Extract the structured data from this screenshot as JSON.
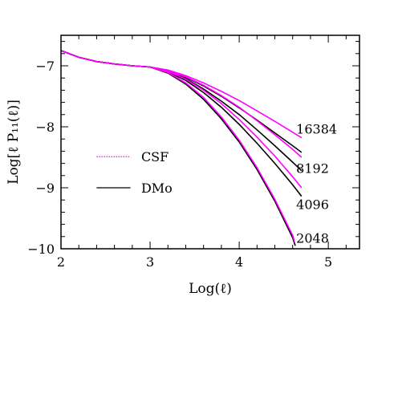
{
  "chart_data": {
    "type": "line",
    "title": "",
    "xlabel": "Log(ℓ)",
    "ylabel": "Log[ℓ P₁₁(ℓ)]",
    "xlim": [
      2,
      5.35
    ],
    "ylim": [
      -10,
      -6.5
    ],
    "xticks": [
      2,
      3,
      4,
      5
    ],
    "yticks": [
      -7,
      -8,
      -9,
      -10
    ],
    "legend": {
      "placement": "left-center",
      "entries": [
        {
          "name": "CSF",
          "color": "#ff00ff",
          "style": "dotted"
        },
        {
          "name": "DMo",
          "color": "#000000",
          "style": "solid"
        }
      ]
    },
    "annotations": [
      "16384",
      "8192",
      "4096",
      "2048"
    ],
    "series": [
      {
        "group": "DMo",
        "label": "16384",
        "color": "#000000",
        "x": [
          2.0,
          2.2,
          2.4,
          2.6,
          2.8,
          3.0,
          3.2,
          3.4,
          3.6,
          3.8,
          4.0,
          4.2,
          4.4,
          4.6,
          4.7
        ],
        "y": [
          -6.75,
          -6.86,
          -6.93,
          -6.97,
          -7.0,
          -7.02,
          -7.08,
          -7.19,
          -7.33,
          -7.5,
          -7.69,
          -7.89,
          -8.1,
          -8.31,
          -8.42
        ]
      },
      {
        "group": "CSF",
        "label": "16384",
        "color": "#ff00ff",
        "x": [
          2.0,
          2.2,
          2.4,
          2.6,
          2.8,
          3.0,
          3.2,
          3.4,
          3.6,
          3.8,
          4.0,
          4.2,
          4.4,
          4.6,
          4.7
        ],
        "y": [
          -6.75,
          -6.86,
          -6.93,
          -6.97,
          -7.0,
          -7.02,
          -7.07,
          -7.16,
          -7.28,
          -7.42,
          -7.57,
          -7.74,
          -7.91,
          -8.09,
          -8.18
        ]
      },
      {
        "group": "DMo",
        "label": "8192",
        "color": "#000000",
        "x": [
          2.0,
          2.2,
          2.4,
          2.6,
          2.8,
          3.0,
          3.2,
          3.4,
          3.6,
          3.8,
          4.0,
          4.2,
          4.4,
          4.6,
          4.7
        ],
        "y": [
          -6.75,
          -6.86,
          -6.93,
          -6.97,
          -7.0,
          -7.02,
          -7.09,
          -7.21,
          -7.38,
          -7.58,
          -7.8,
          -8.05,
          -8.31,
          -8.58,
          -8.72
        ]
      },
      {
        "group": "CSF",
        "label": "8192",
        "color": "#ff00ff",
        "x": [
          2.0,
          2.2,
          2.4,
          2.6,
          2.8,
          3.0,
          3.2,
          3.4,
          3.6,
          3.8,
          4.0,
          4.2,
          4.4,
          4.6,
          4.7
        ],
        "y": [
          -6.75,
          -6.86,
          -6.93,
          -6.97,
          -7.0,
          -7.02,
          -7.08,
          -7.18,
          -7.32,
          -7.49,
          -7.68,
          -7.9,
          -8.13,
          -8.37,
          -8.5
        ]
      },
      {
        "group": "DMo",
        "label": "4096",
        "color": "#000000",
        "x": [
          2.0,
          2.2,
          2.4,
          2.6,
          2.8,
          3.0,
          3.2,
          3.4,
          3.6,
          3.8,
          4.0,
          4.2,
          4.4,
          4.6,
          4.7
        ],
        "y": [
          -6.75,
          -6.86,
          -6.93,
          -6.97,
          -7.0,
          -7.02,
          -7.1,
          -7.24,
          -7.44,
          -7.68,
          -7.96,
          -8.27,
          -8.6,
          -8.95,
          -9.14
        ]
      },
      {
        "group": "CSF",
        "label": "4096",
        "color": "#ff00ff",
        "x": [
          2.0,
          2.2,
          2.4,
          2.6,
          2.8,
          3.0,
          3.2,
          3.4,
          3.6,
          3.8,
          4.0,
          4.2,
          4.4,
          4.6,
          4.7
        ],
        "y": [
          -6.75,
          -6.86,
          -6.93,
          -6.97,
          -7.0,
          -7.02,
          -7.09,
          -7.22,
          -7.4,
          -7.62,
          -7.88,
          -8.17,
          -8.48,
          -8.82,
          -9.0
        ]
      },
      {
        "group": "DMo",
        "label": "2048",
        "color": "#000000",
        "x": [
          2.0,
          2.2,
          2.4,
          2.6,
          2.8,
          3.0,
          3.2,
          3.4,
          3.6,
          3.8,
          4.0,
          4.2,
          4.4,
          4.6,
          4.63
        ],
        "y": [
          -6.75,
          -6.86,
          -6.93,
          -6.97,
          -7.0,
          -7.02,
          -7.12,
          -7.3,
          -7.55,
          -7.87,
          -8.25,
          -8.7,
          -9.22,
          -9.82,
          -9.95
        ]
      },
      {
        "group": "CSF",
        "label": "2048",
        "color": "#ff00ff",
        "x": [
          2.0,
          2.2,
          2.4,
          2.6,
          2.8,
          3.0,
          3.2,
          3.4,
          3.6,
          3.8,
          4.0,
          4.2,
          4.4,
          4.6,
          4.62
        ],
        "y": [
          -6.75,
          -6.86,
          -6.93,
          -6.97,
          -7.0,
          -7.02,
          -7.11,
          -7.28,
          -7.52,
          -7.84,
          -8.22,
          -8.67,
          -9.19,
          -9.78,
          -9.88
        ]
      }
    ]
  }
}
